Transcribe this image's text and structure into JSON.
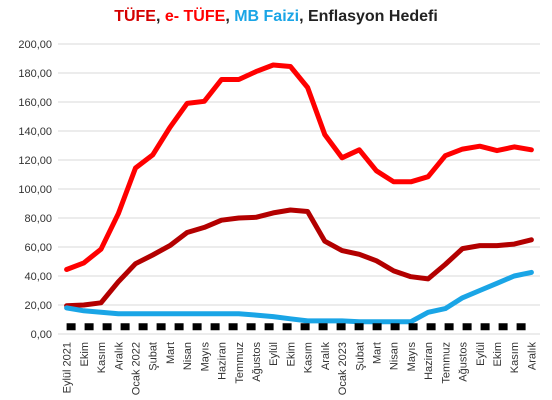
{
  "chart_data": {
    "type": "line",
    "title_parts": [
      {
        "text": "TÜFE",
        "color": "#d40000"
      },
      {
        "text": ", ",
        "color": "#222222"
      },
      {
        "text": "e- TÜFE",
        "color": "#ff0000"
      },
      {
        "text": ", ",
        "color": "#222222"
      },
      {
        "text": "MB Faizi",
        "color": "#1aa5e6"
      },
      {
        "text": ", Enflasyon Hedefi",
        "color": "#222222"
      }
    ],
    "categories": [
      "Eylül 2021",
      "Ekim",
      "Kasım",
      "Aralık",
      "Ocak 2022",
      "Şubat",
      "Mart",
      "Nisan",
      "Mayıs",
      "Haziran",
      "Temmuz",
      "Ağustos",
      "Eylül",
      "Ekim",
      "Kasım",
      "Aralık",
      "Ocak 2023",
      "Şubat",
      "Mart",
      "Nisan",
      "Mayıs",
      "Haziran",
      "Temmuz",
      "Ağustos",
      "Eylül",
      "Ekim",
      "Kasım",
      "Aralık"
    ],
    "ylim": [
      0,
      200
    ],
    "yticks": [
      "0,00",
      "20,00",
      "40,00",
      "60,00",
      "80,00",
      "100,00",
      "120,00",
      "140,00",
      "160,00",
      "180,00",
      "200,00"
    ],
    "grid": true,
    "series": [
      {
        "name": "e- TÜFE",
        "color": "#ff0000",
        "style": "solid",
        "values": [
          44.5,
          49.0,
          58.5,
          83.0,
          114.5,
          123.5,
          142.5,
          159.0,
          160.5,
          175.5,
          175.5,
          181.0,
          185.5,
          184.5,
          170.0,
          137.5,
          121.5,
          127.0,
          112.5,
          105.0,
          105.0,
          108.5,
          123.0,
          127.5,
          129.5,
          126.5,
          129.0,
          127.0
        ]
      },
      {
        "name": "TÜFE",
        "color": "#b30000",
        "style": "solid",
        "values": [
          19.5,
          20.0,
          21.5,
          36.0,
          48.5,
          54.5,
          61.0,
          70.0,
          73.5,
          78.5,
          80.0,
          80.5,
          83.5,
          85.5,
          84.5,
          64.0,
          57.5,
          55.0,
          50.5,
          43.5,
          39.5,
          38.0,
          48.0,
          58.9,
          61.0,
          61.0,
          62.0,
          65.0
        ]
      },
      {
        "name": "MB Faizi",
        "color": "#1aa5e6",
        "style": "solid",
        "values": [
          18.0,
          16.0,
          15.0,
          14.0,
          14.0,
          14.0,
          14.0,
          14.0,
          14.0,
          14.0,
          14.0,
          13.0,
          12.0,
          10.5,
          9.0,
          9.0,
          9.0,
          8.5,
          8.5,
          8.5,
          8.5,
          15.0,
          17.5,
          25.0,
          30.0,
          35.0,
          40.0,
          42.5
        ]
      },
      {
        "name": "Enflasyon Hedefi",
        "color": "#000000",
        "style": "dashed",
        "values": [
          5,
          5,
          5,
          5,
          5,
          5,
          5,
          5,
          5,
          5,
          5,
          5,
          5,
          5,
          5,
          5,
          5,
          5,
          5,
          5,
          5,
          5,
          5,
          5,
          5,
          5,
          5,
          5
        ]
      }
    ]
  }
}
